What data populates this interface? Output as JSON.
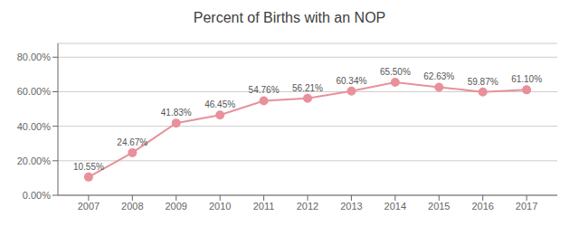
{
  "chart_data": {
    "type": "line",
    "title": "Percent of Births with an NOP",
    "x": [
      2007,
      2008,
      2009,
      2010,
      2011,
      2012,
      2013,
      2014,
      2015,
      2016,
      2017
    ],
    "values": [
      0.1055,
      0.2467,
      0.4183,
      0.4645,
      0.5476,
      0.5621,
      0.6034,
      0.655,
      0.6263,
      0.5987,
      0.611
    ],
    "value_labels": [
      "10.55%",
      "24.67%",
      "41.83%",
      "46.45%",
      "54.76%",
      "56.21%",
      "60.34%",
      "65.50%",
      "62.63%",
      "59.87%",
      "61.10%"
    ],
    "data_labels": true,
    "color": "#E8919A",
    "marker": "circle",
    "xlim": [
      2006.3,
      2017.7
    ],
    "xticks": [
      2007,
      2008,
      2009,
      2010,
      2011,
      2012,
      2013,
      2014,
      2015,
      2016,
      2017
    ],
    "ylim": [
      0.0,
      0.88
    ],
    "yticks": [
      {
        "value": 0.0,
        "label": "0.00%"
      },
      {
        "value": 0.2,
        "label": "20.00%"
      },
      {
        "value": 0.4,
        "label": "40.00%"
      },
      {
        "value": 0.6,
        "label": "60.00%"
      },
      {
        "value": 0.8,
        "label": "80.00%"
      }
    ],
    "grid": true
  }
}
